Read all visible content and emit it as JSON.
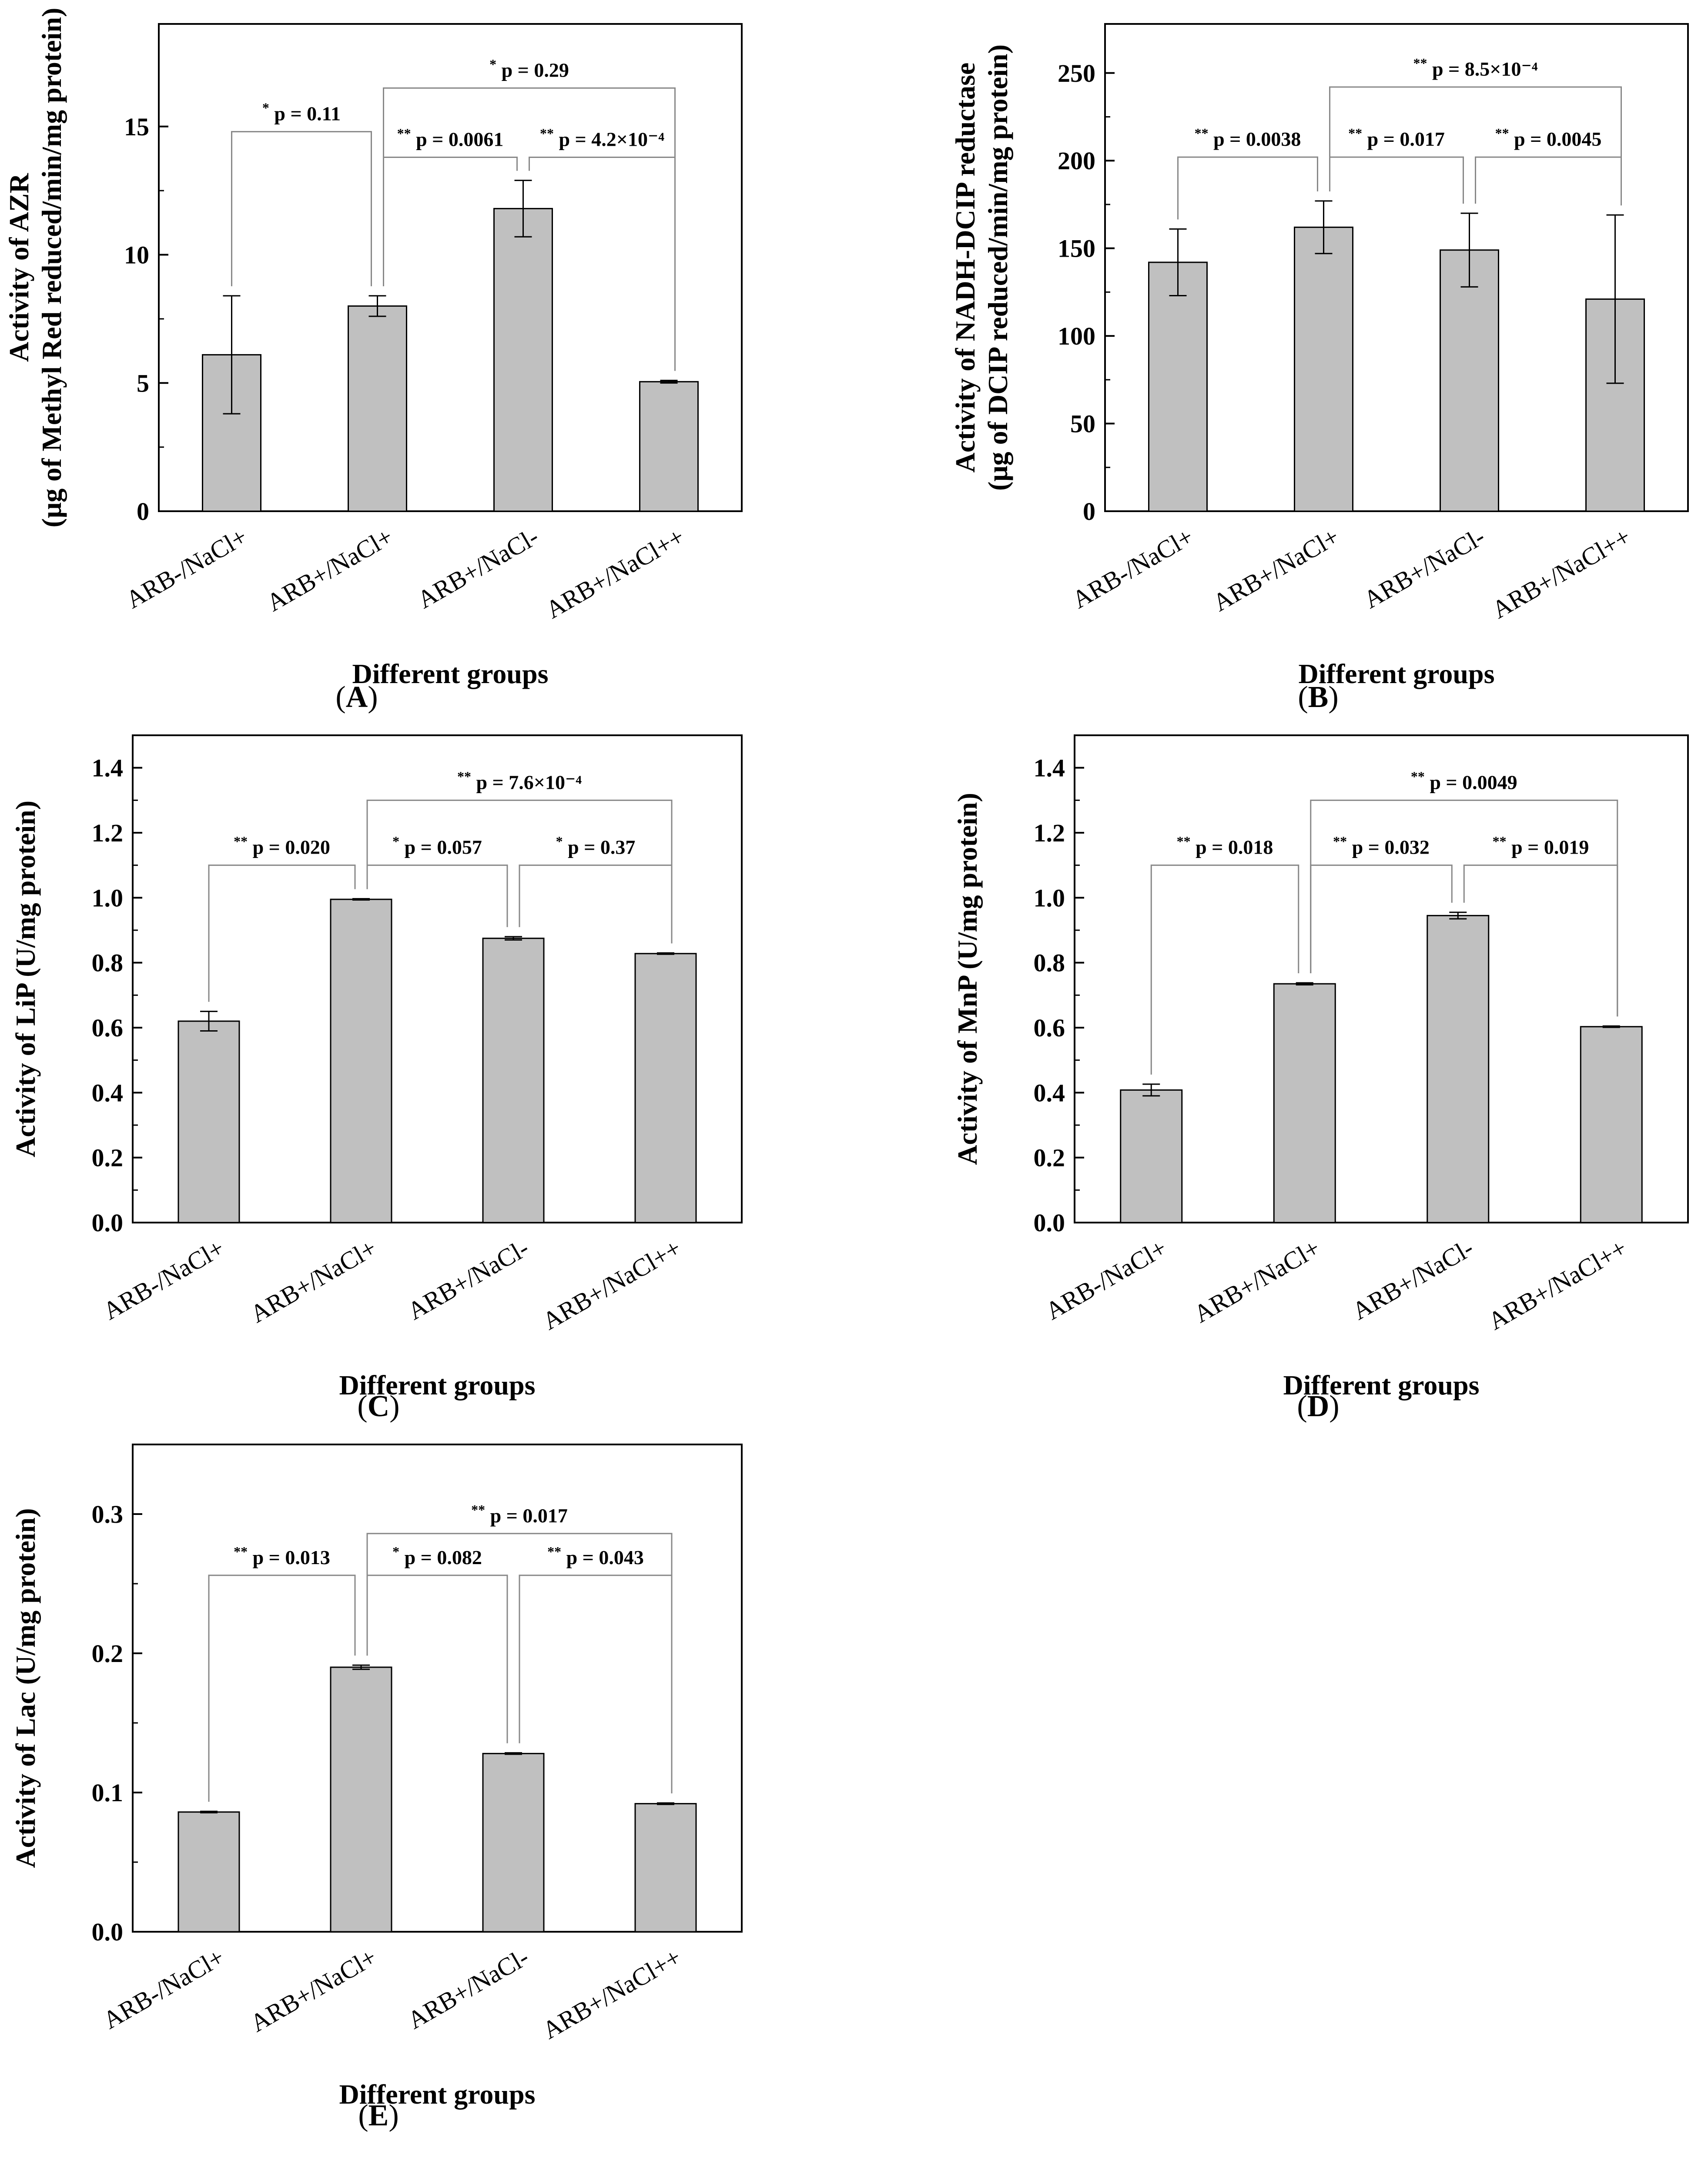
{
  "chart_data": [
    {
      "type": "bar",
      "panel": "A",
      "categories": [
        "ARB-/NaCl+",
        "ARB+/NaCl+",
        "ARB+/NaCl-",
        "ARB+/NaCl++"
      ],
      "values": [
        6.1,
        8.0,
        11.8,
        5.05
      ],
      "errors": [
        2.3,
        0.4,
        1.1,
        0.05
      ],
      "ylim": [
        0,
        19
      ],
      "yticks": [
        0,
        5,
        10,
        15
      ],
      "tick_labels": [
        "0",
        "5",
        "10",
        "15"
      ],
      "ylabel": [
        "Activity of AZR",
        "(μg of Methyl Red reduced/min/mg protein)"
      ],
      "xlabel": "Different groups",
      "color": "#c0c0c0",
      "comparisons": [
        {
          "i": 0,
          "j": 1,
          "level": 14.8,
          "stars": "*",
          "text": "p = 0.11"
        },
        {
          "i": 1,
          "j": 2,
          "level": 13.8,
          "stars": "**",
          "text": "p = 0.0061"
        },
        {
          "i": 2,
          "j": 3,
          "level": 13.8,
          "stars": "**",
          "text": "p = 4.2×10⁻⁴"
        },
        {
          "i": 1,
          "j": 3,
          "level": 16.5,
          "stars": "*",
          "text": "p = 0.29"
        }
      ]
    },
    {
      "type": "bar",
      "panel": "B",
      "categories": [
        "ARB-/NaCl+",
        "ARB+/NaCl+",
        "ARB+/NaCl-",
        "ARB+/NaCl++"
      ],
      "values": [
        142,
        162,
        149,
        121
      ],
      "errors": [
        19,
        15,
        21,
        48
      ],
      "ylim": [
        0,
        278
      ],
      "yticks": [
        0,
        50,
        100,
        150,
        200,
        250
      ],
      "tick_labels": [
        "0",
        "50",
        "100",
        "150",
        "200",
        "250"
      ],
      "ylabel": [
        "Activity of NADH-DCIP reductase",
        "(μg of DCIP reduced/min/mg protein)"
      ],
      "xlabel": "Different groups",
      "color": "#c0c0c0",
      "comparisons": [
        {
          "i": 0,
          "j": 1,
          "level": 202,
          "stars": "**",
          "text": "p = 0.0038"
        },
        {
          "i": 1,
          "j": 2,
          "level": 202,
          "stars": "**",
          "text": "p = 0.017"
        },
        {
          "i": 2,
          "j": 3,
          "level": 202,
          "stars": "**",
          "text": "p = 0.0045"
        },
        {
          "i": 1,
          "j": 3,
          "level": 242,
          "stars": "**",
          "text": "p = 8.5×10⁻⁴"
        }
      ]
    },
    {
      "type": "bar",
      "panel": "C",
      "categories": [
        "ARB-/NaCl+",
        "ARB+/NaCl+",
        "ARB+/NaCl-",
        "ARB+/NaCl++"
      ],
      "values": [
        0.62,
        0.995,
        0.875,
        0.828
      ],
      "errors": [
        0.03,
        0.002,
        0.005,
        0.002
      ],
      "ylim": [
        0,
        1.5
      ],
      "yticks": [
        0,
        0.2,
        0.4,
        0.6,
        0.8,
        1.0,
        1.2,
        1.4
      ],
      "tick_labels": [
        "0.0",
        "0.2",
        "0.4",
        "0.6",
        "0.8",
        "1.0",
        "1.2",
        "1.4"
      ],
      "ylabel": [
        "Activity of LiP (U/mg protein)"
      ],
      "xlabel": "Different groups",
      "color": "#c0c0c0",
      "comparisons": [
        {
          "i": 0,
          "j": 1,
          "level": 1.1,
          "stars": "**",
          "text": "p = 0.020"
        },
        {
          "i": 1,
          "j": 2,
          "level": 1.1,
          "stars": "*",
          "text": "p = 0.057"
        },
        {
          "i": 2,
          "j": 3,
          "level": 1.1,
          "stars": "*",
          "text": "p = 0.37"
        },
        {
          "i": 1,
          "j": 3,
          "level": 1.3,
          "stars": "**",
          "text": "p = 7.6×10⁻⁴"
        }
      ]
    },
    {
      "type": "bar",
      "panel": "D",
      "categories": [
        "ARB-/NaCl+",
        "ARB+/NaCl+",
        "ARB+/NaCl-",
        "ARB+/NaCl++"
      ],
      "values": [
        0.408,
        0.735,
        0.945,
        0.603
      ],
      "errors": [
        0.018,
        0.003,
        0.01,
        0.002
      ],
      "ylim": [
        0,
        1.5
      ],
      "yticks": [
        0,
        0.2,
        0.4,
        0.6,
        0.8,
        1.0,
        1.2,
        1.4
      ],
      "tick_labels": [
        "0.0",
        "0.2",
        "0.4",
        "0.6",
        "0.8",
        "1.0",
        "1.2",
        "1.4"
      ],
      "ylabel": [
        "Activity of MnP (U/mg protein)"
      ],
      "xlabel": "Different groups",
      "color": "#c0c0c0",
      "comparisons": [
        {
          "i": 0,
          "j": 1,
          "level": 1.1,
          "stars": "**",
          "text": "p = 0.018"
        },
        {
          "i": 1,
          "j": 2,
          "level": 1.1,
          "stars": "**",
          "text": "p = 0.032"
        },
        {
          "i": 2,
          "j": 3,
          "level": 1.1,
          "stars": "**",
          "text": "p = 0.019"
        },
        {
          "i": 1,
          "j": 3,
          "level": 1.3,
          "stars": "**",
          "text": "p = 0.0049"
        }
      ]
    },
    {
      "type": "bar",
      "panel": "E",
      "categories": [
        "ARB-/NaCl+",
        "ARB+/NaCl+",
        "ARB+/NaCl-",
        "ARB+/NaCl++"
      ],
      "values": [
        0.086,
        0.19,
        0.128,
        0.092
      ],
      "errors": [
        0.0005,
        0.0015,
        0.0005,
        0.0005
      ],
      "ylim": [
        0,
        0.35
      ],
      "yticks": [
        0,
        0.1,
        0.2,
        0.3
      ],
      "tick_labels": [
        "0.0",
        "0.1",
        "0.2",
        "0.3"
      ],
      "ylabel": [
        "Activity of Lac (U/mg protein)"
      ],
      "xlabel": "Different groups",
      "color": "#c0c0c0",
      "comparisons": [
        {
          "i": 0,
          "j": 1,
          "level": 0.256,
          "stars": "**",
          "text": "p = 0.013"
        },
        {
          "i": 1,
          "j": 2,
          "level": 0.256,
          "stars": "*",
          "text": "p = 0.082"
        },
        {
          "i": 2,
          "j": 3,
          "level": 0.256,
          "stars": "**",
          "text": "p = 0.043"
        },
        {
          "i": 1,
          "j": 3,
          "level": 0.286,
          "stars": "**",
          "text": "p = 0.017"
        }
      ]
    }
  ]
}
